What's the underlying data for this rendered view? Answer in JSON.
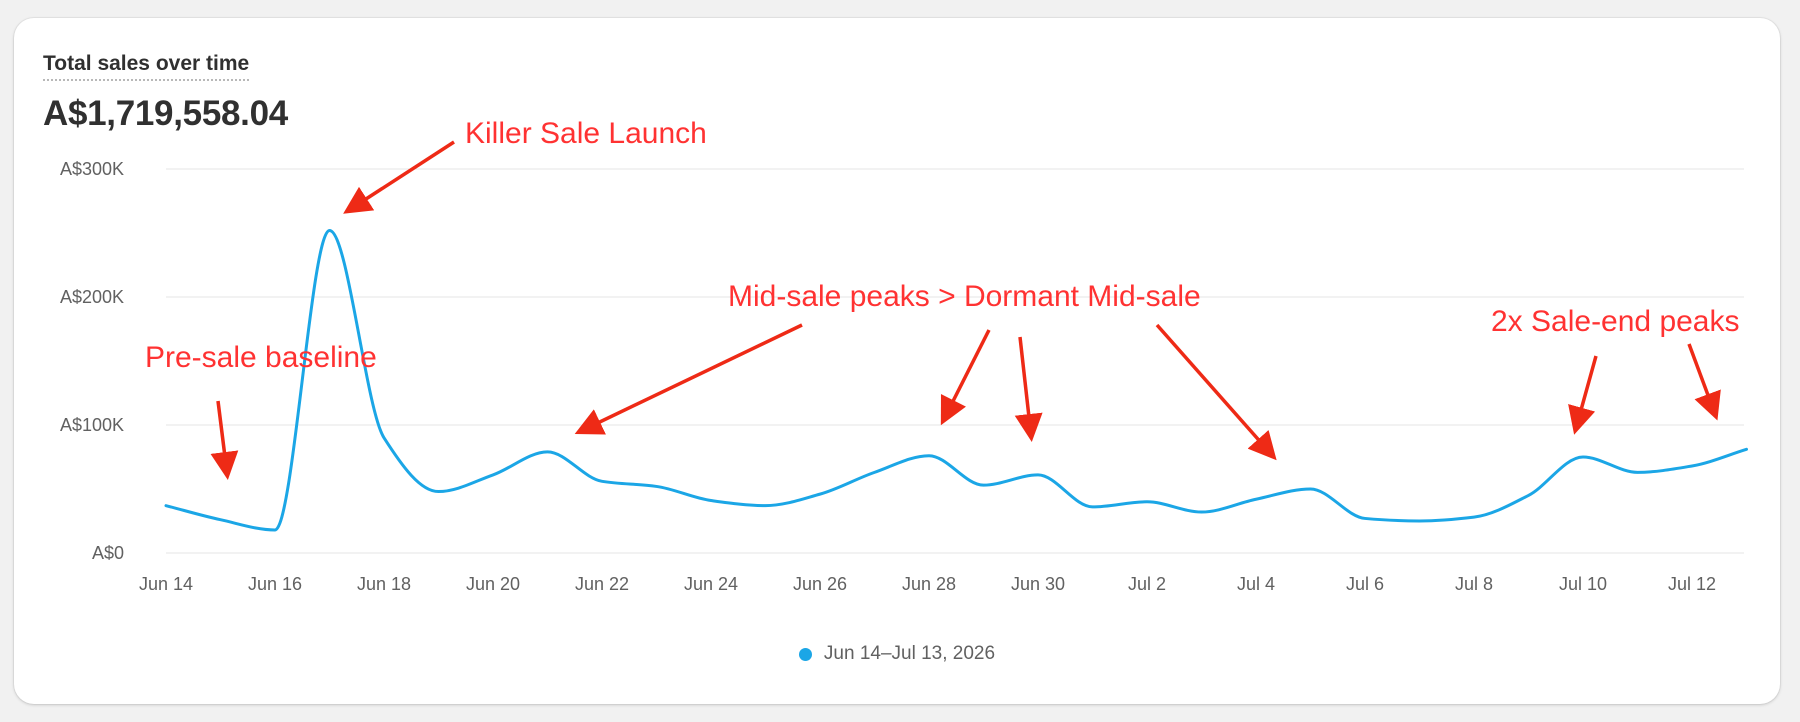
{
  "card": {
    "title": "Total sales over time",
    "total": "A$1,719,558.04"
  },
  "chart_data": {
    "type": "line",
    "title": "Total sales over time",
    "xlabel": "",
    "ylabel": "",
    "ylim": [
      0,
      300000
    ],
    "y_ticks": [
      0,
      100000,
      200000,
      300000
    ],
    "y_tick_labels": [
      "A$0",
      "A$100K",
      "A$200K",
      "A$300K"
    ],
    "x_tick_labels": [
      "Jun 14",
      "Jun 16",
      "Jun 18",
      "Jun 20",
      "Jun 22",
      "Jun 24",
      "Jun 26",
      "Jun 28",
      "Jun 30",
      "Jul 2",
      "Jul 4",
      "Jul 6",
      "Jul 8",
      "Jul 10",
      "Jul 12"
    ],
    "x": [
      "Jun 14",
      "Jun 15",
      "Jun 16",
      "Jun 17",
      "Jun 18",
      "Jun 19",
      "Jun 20",
      "Jun 21",
      "Jun 22",
      "Jun 23",
      "Jun 24",
      "Jun 25",
      "Jun 26",
      "Jun 27",
      "Jun 28",
      "Jun 29",
      "Jun 30",
      "Jul 1",
      "Jul 2",
      "Jul 3",
      "Jul 4",
      "Jul 5",
      "Jul 6",
      "Jul 7",
      "Jul 8",
      "Jul 9",
      "Jul 10",
      "Jul 11",
      "Jul 12",
      "Jul 13"
    ],
    "series": [
      {
        "name": "Jun 14–Jul 13, 2026",
        "color": "#1ba6e6",
        "values": [
          37000,
          26000,
          18000,
          252000,
          90000,
          48000,
          61000,
          79000,
          56000,
          52000,
          41000,
          37000,
          46000,
          63000,
          76000,
          53000,
          61000,
          36000,
          40000,
          32000,
          42000,
          50000,
          27000,
          25000,
          28000,
          45000,
          75000,
          63000,
          68000,
          81000
        ]
      }
    ],
    "grid": true,
    "legend": "bottom-center",
    "annotations": [
      {
        "text": "Killer Sale Launch",
        "color": "#ff3232"
      },
      {
        "text": "Pre-sale baseline",
        "color": "#ff3232"
      },
      {
        "text": "Mid-sale peaks > Dormant Mid-sale",
        "color": "#ff3232"
      },
      {
        "text": "2x Sale-end peaks",
        "color": "#ff3232"
      }
    ]
  },
  "legend": {
    "label": "Jun 14–Jul 13, 2026",
    "color": "#1ba6e6"
  },
  "colors": {
    "line": "#1ba6e6",
    "annotation": "#ff3232",
    "arrow": "#ee2a16",
    "grid": "#e6e6e6",
    "axis_text": "#616161"
  }
}
